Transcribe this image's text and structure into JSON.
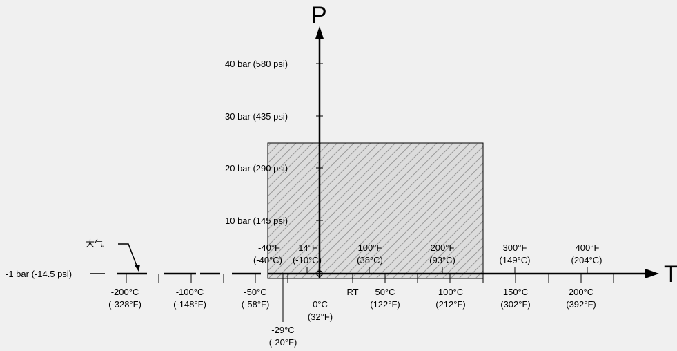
{
  "axes": {
    "y_title": "P",
    "x_title": "T"
  },
  "pressure_labels": [
    "40 bar (580 psi)",
    "30 bar (435 psi)",
    "20 bar (290 psi)",
    "10 bar (145 psi)",
    "-1 bar (-14.5 psi)"
  ],
  "atmosphere_label": "大气",
  "fahrenheit_labels": [
    {
      "f": "-40°F",
      "c": "(-40°C)"
    },
    {
      "f": "14°F",
      "c": "(-10°C)"
    },
    {
      "f": "100°F",
      "c": "(38°C)"
    },
    {
      "f": "200°F",
      "c": "(93°C)"
    },
    {
      "f": "300°F",
      "c": "(149°C)"
    },
    {
      "f": "400°F",
      "c": "(204°C)"
    }
  ],
  "celsius_labels": [
    {
      "c": "-200°C",
      "f": "(-328°F)"
    },
    {
      "c": "-100°C",
      "f": "(-148°F)"
    },
    {
      "c": "-50°C",
      "f": "(-58°F)"
    },
    {
      "c": "50°C",
      "f": "(122°F)"
    },
    {
      "c": "100°C",
      "f": "(212°F)"
    },
    {
      "c": "150°C",
      "f": "(302°F)"
    },
    {
      "c": "200°C",
      "f": "(392°F)"
    }
  ],
  "origin_label": {
    "c": "0°C",
    "f": "(32°F)"
  },
  "room_temp_label": "RT",
  "low_temp_label": {
    "c": "-29°C",
    "f": "(-20°F)"
  },
  "colors": {
    "background": "#f0f0f0",
    "line": "#000000",
    "region_fill": "#dcdcdc",
    "hatch": "#9a9a9a"
  }
}
